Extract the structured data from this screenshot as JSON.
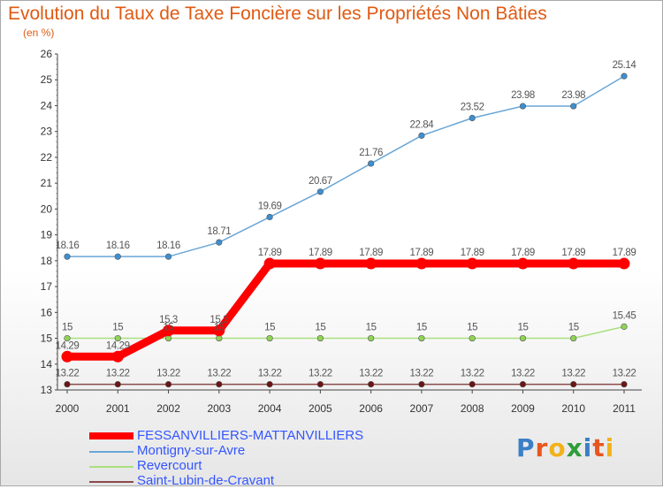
{
  "header": {
    "title": "Evolution du Taux de Taxe Foncière sur les Propriétés Non Bâties",
    "unit": "(en %)"
  },
  "logo": {
    "text": "Proxiti",
    "colors": [
      "#3a7fc6",
      "#e8561f",
      "#f2b21b",
      "#2f9d3a",
      "#3a7fc6",
      "#e8561f",
      "#f2b21b"
    ]
  },
  "chart_data": {
    "type": "line",
    "categories": [
      "2000",
      "2001",
      "2002",
      "2003",
      "2004",
      "2005",
      "2006",
      "2007",
      "2008",
      "2009",
      "2010",
      "2011"
    ],
    "ylim": [
      13,
      26
    ],
    "yticks": [
      13,
      14,
      15,
      16,
      17,
      18,
      19,
      20,
      21,
      22,
      23,
      24,
      25,
      26
    ],
    "ylabel": "(en %)",
    "grid": false,
    "legend_position": "bottom-left",
    "series": [
      {
        "name": "FESSANVILLIERS-MATTANVILLIERS",
        "color": "#ff0000",
        "point_color": "#ff0000",
        "style": "thick",
        "values": [
          14.29,
          14.29,
          15.3,
          15.3,
          17.89,
          17.89,
          17.89,
          17.89,
          17.89,
          17.89,
          17.89,
          17.89
        ],
        "labels": [
          "14.29",
          "14.29",
          "15.3",
          "15.3",
          "17.89",
          "17.89",
          "17.89",
          "17.89",
          "17.89",
          "17.89",
          "17.89",
          "17.89"
        ]
      },
      {
        "name": "Montigny-sur-Avre",
        "color": "#6aa6d6",
        "point_color": "#3d8fd1",
        "style": "thin",
        "values": [
          18.16,
          18.16,
          18.16,
          18.71,
          19.69,
          20.67,
          21.76,
          22.84,
          23.52,
          23.98,
          23.98,
          25.14
        ],
        "labels": [
          "18.16",
          "18.16",
          "18.16",
          "18.71",
          "19.69",
          "20.67",
          "21.76",
          "22.84",
          "23.52",
          "23.98",
          "23.98",
          "25.14"
        ]
      },
      {
        "name": "Revercourt",
        "color": "#a9e07f",
        "point_color": "#8fd354",
        "style": "thin",
        "values": [
          15,
          15,
          15,
          15,
          15,
          15,
          15,
          15,
          15,
          15,
          15,
          15.45
        ],
        "labels": [
          "15",
          "15",
          "15",
          "15",
          "15",
          "15",
          "15",
          "15",
          "15",
          "15",
          "15",
          "15.45"
        ]
      },
      {
        "name": "Saint-Lubin-de-Cravant",
        "color": "#8a4a4a",
        "point_color": "#6b1414",
        "style": "thin",
        "values": [
          13.22,
          13.22,
          13.22,
          13.22,
          13.22,
          13.22,
          13.22,
          13.22,
          13.22,
          13.22,
          13.22,
          13.22
        ],
        "labels": [
          "13.22",
          "13.22",
          "13.22",
          "13.22",
          "13.22",
          "13.22",
          "13.22",
          "13.22",
          "13.22",
          "13.22",
          "13.22",
          "13.22"
        ]
      }
    ]
  }
}
